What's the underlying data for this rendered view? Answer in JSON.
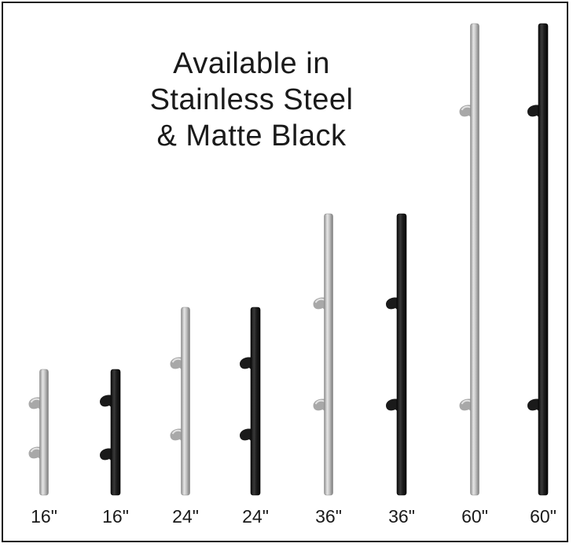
{
  "title": {
    "line1": "Available in",
    "line2": "Stainless Steel",
    "line3": "& Matte Black"
  },
  "colors": {
    "stainless": "#b8b8b8",
    "matte_black": "#1c1c1c"
  },
  "handles": [
    {
      "size": "16\"",
      "finish": "stainless"
    },
    {
      "size": "16\"",
      "finish": "matte_black"
    },
    {
      "size": "24\"",
      "finish": "stainless"
    },
    {
      "size": "24\"",
      "finish": "matte_black"
    },
    {
      "size": "36\"",
      "finish": "stainless"
    },
    {
      "size": "36\"",
      "finish": "matte_black"
    },
    {
      "size": "60\"",
      "finish": "stainless"
    },
    {
      "size": "60\"",
      "finish": "matte_black"
    }
  ]
}
